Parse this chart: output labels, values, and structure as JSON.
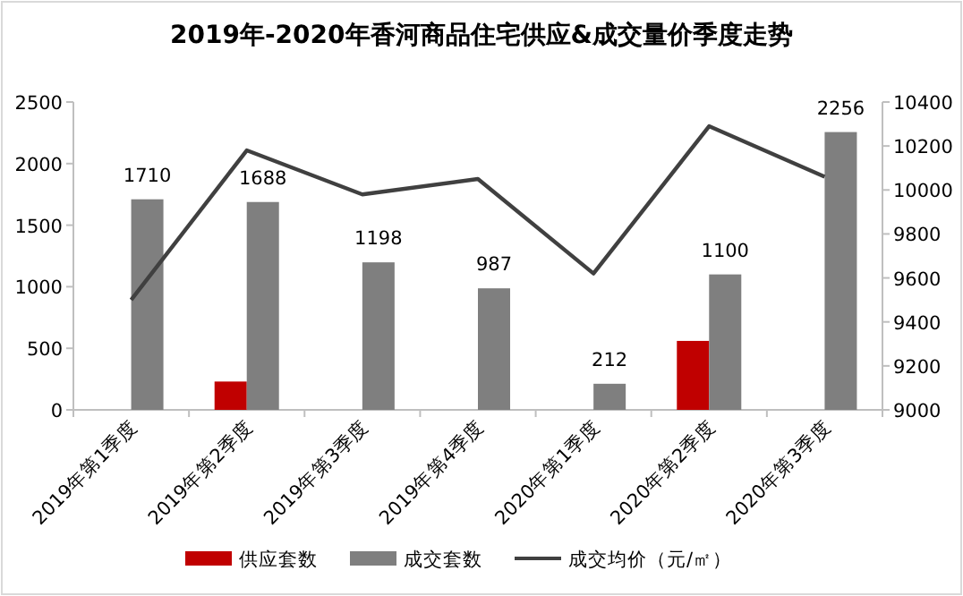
{
  "chart_data": {
    "type": "bar",
    "title": "2019年-2020年香河商品住宅供应&成交量价季度走势",
    "categories": [
      "2019年第1季度",
      "2019年第2季度",
      "2019年第3季度",
      "2019年第4季度",
      "2020年第1季度",
      "2020年第2季度",
      "2020年第3季度"
    ],
    "series": [
      {
        "name": "供应套数",
        "color": "#c00000",
        "values": [
          null,
          230,
          null,
          null,
          null,
          560,
          null
        ]
      },
      {
        "name": "成交套数",
        "color": "#7f7f7f",
        "values": [
          1710,
          1688,
          1198,
          987,
          212,
          1100,
          2256
        ],
        "value_labels": [
          "1710",
          "1688",
          "1198",
          "987",
          "212",
          "1100",
          "2256"
        ]
      },
      {
        "name": "成交均价（元/㎡）",
        "type": "line",
        "axis": "y2",
        "color": "#404040",
        "values": [
          9500,
          10180,
          9980,
          10050,
          9620,
          10290,
          10060
        ]
      }
    ],
    "ylim": [
      0,
      2500
    ],
    "yticks": [
      0,
      500,
      1000,
      1500,
      2000,
      2500
    ],
    "y2lim": [
      9000,
      10400
    ],
    "y2ticks": [
      9000,
      9200,
      9400,
      9600,
      9800,
      10000,
      10200,
      10400
    ],
    "grid": false,
    "legend": "bottom"
  }
}
